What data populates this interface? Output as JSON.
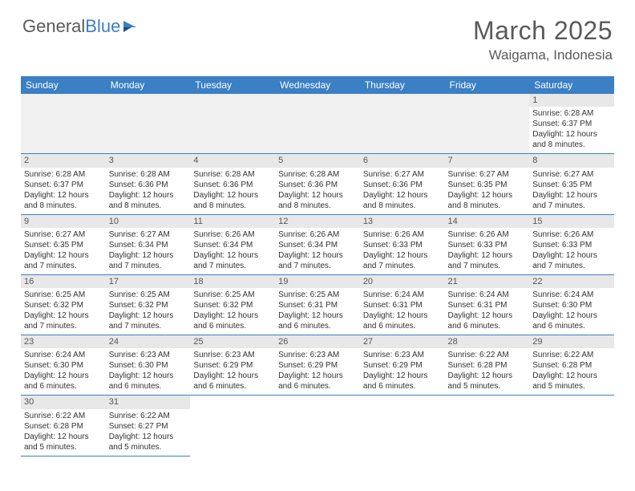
{
  "logo": {
    "text1": "General",
    "text2": "Blue"
  },
  "title": "March 2025",
  "location": "Waigama, Indonesia",
  "colors": {
    "header_bg": "#3b7fc4",
    "header_text": "#ffffff",
    "daynum_bg": "#e8e8e8",
    "border": "#3b7fc4",
    "text": "#333333",
    "title_color": "#5a5a5a"
  },
  "weekdays": [
    "Sunday",
    "Monday",
    "Tuesday",
    "Wednesday",
    "Thursday",
    "Friday",
    "Saturday"
  ],
  "weeks": [
    [
      null,
      null,
      null,
      null,
      null,
      null,
      {
        "n": "1",
        "sr": "Sunrise: 6:28 AM",
        "ss": "Sunset: 6:37 PM",
        "dl": "Daylight: 12 hours and 8 minutes."
      }
    ],
    [
      {
        "n": "2",
        "sr": "Sunrise: 6:28 AM",
        "ss": "Sunset: 6:37 PM",
        "dl": "Daylight: 12 hours and 8 minutes."
      },
      {
        "n": "3",
        "sr": "Sunrise: 6:28 AM",
        "ss": "Sunset: 6:36 PM",
        "dl": "Daylight: 12 hours and 8 minutes."
      },
      {
        "n": "4",
        "sr": "Sunrise: 6:28 AM",
        "ss": "Sunset: 6:36 PM",
        "dl": "Daylight: 12 hours and 8 minutes."
      },
      {
        "n": "5",
        "sr": "Sunrise: 6:28 AM",
        "ss": "Sunset: 6:36 PM",
        "dl": "Daylight: 12 hours and 8 minutes."
      },
      {
        "n": "6",
        "sr": "Sunrise: 6:27 AM",
        "ss": "Sunset: 6:36 PM",
        "dl": "Daylight: 12 hours and 8 minutes."
      },
      {
        "n": "7",
        "sr": "Sunrise: 6:27 AM",
        "ss": "Sunset: 6:35 PM",
        "dl": "Daylight: 12 hours and 8 minutes."
      },
      {
        "n": "8",
        "sr": "Sunrise: 6:27 AM",
        "ss": "Sunset: 6:35 PM",
        "dl": "Daylight: 12 hours and 7 minutes."
      }
    ],
    [
      {
        "n": "9",
        "sr": "Sunrise: 6:27 AM",
        "ss": "Sunset: 6:35 PM",
        "dl": "Daylight: 12 hours and 7 minutes."
      },
      {
        "n": "10",
        "sr": "Sunrise: 6:27 AM",
        "ss": "Sunset: 6:34 PM",
        "dl": "Daylight: 12 hours and 7 minutes."
      },
      {
        "n": "11",
        "sr": "Sunrise: 6:26 AM",
        "ss": "Sunset: 6:34 PM",
        "dl": "Daylight: 12 hours and 7 minutes."
      },
      {
        "n": "12",
        "sr": "Sunrise: 6:26 AM",
        "ss": "Sunset: 6:34 PM",
        "dl": "Daylight: 12 hours and 7 minutes."
      },
      {
        "n": "13",
        "sr": "Sunrise: 6:26 AM",
        "ss": "Sunset: 6:33 PM",
        "dl": "Daylight: 12 hours and 7 minutes."
      },
      {
        "n": "14",
        "sr": "Sunrise: 6:26 AM",
        "ss": "Sunset: 6:33 PM",
        "dl": "Daylight: 12 hours and 7 minutes."
      },
      {
        "n": "15",
        "sr": "Sunrise: 6:26 AM",
        "ss": "Sunset: 6:33 PM",
        "dl": "Daylight: 12 hours and 7 minutes."
      }
    ],
    [
      {
        "n": "16",
        "sr": "Sunrise: 6:25 AM",
        "ss": "Sunset: 6:32 PM",
        "dl": "Daylight: 12 hours and 7 minutes."
      },
      {
        "n": "17",
        "sr": "Sunrise: 6:25 AM",
        "ss": "Sunset: 6:32 PM",
        "dl": "Daylight: 12 hours and 7 minutes."
      },
      {
        "n": "18",
        "sr": "Sunrise: 6:25 AM",
        "ss": "Sunset: 6:32 PM",
        "dl": "Daylight: 12 hours and 6 minutes."
      },
      {
        "n": "19",
        "sr": "Sunrise: 6:25 AM",
        "ss": "Sunset: 6:31 PM",
        "dl": "Daylight: 12 hours and 6 minutes."
      },
      {
        "n": "20",
        "sr": "Sunrise: 6:24 AM",
        "ss": "Sunset: 6:31 PM",
        "dl": "Daylight: 12 hours and 6 minutes."
      },
      {
        "n": "21",
        "sr": "Sunrise: 6:24 AM",
        "ss": "Sunset: 6:31 PM",
        "dl": "Daylight: 12 hours and 6 minutes."
      },
      {
        "n": "22",
        "sr": "Sunrise: 6:24 AM",
        "ss": "Sunset: 6:30 PM",
        "dl": "Daylight: 12 hours and 6 minutes."
      }
    ],
    [
      {
        "n": "23",
        "sr": "Sunrise: 6:24 AM",
        "ss": "Sunset: 6:30 PM",
        "dl": "Daylight: 12 hours and 6 minutes."
      },
      {
        "n": "24",
        "sr": "Sunrise: 6:23 AM",
        "ss": "Sunset: 6:30 PM",
        "dl": "Daylight: 12 hours and 6 minutes."
      },
      {
        "n": "25",
        "sr": "Sunrise: 6:23 AM",
        "ss": "Sunset: 6:29 PM",
        "dl": "Daylight: 12 hours and 6 minutes."
      },
      {
        "n": "26",
        "sr": "Sunrise: 6:23 AM",
        "ss": "Sunset: 6:29 PM",
        "dl": "Daylight: 12 hours and 6 minutes."
      },
      {
        "n": "27",
        "sr": "Sunrise: 6:23 AM",
        "ss": "Sunset: 6:29 PM",
        "dl": "Daylight: 12 hours and 6 minutes."
      },
      {
        "n": "28",
        "sr": "Sunrise: 6:22 AM",
        "ss": "Sunset: 6:28 PM",
        "dl": "Daylight: 12 hours and 5 minutes."
      },
      {
        "n": "29",
        "sr": "Sunrise: 6:22 AM",
        "ss": "Sunset: 6:28 PM",
        "dl": "Daylight: 12 hours and 5 minutes."
      }
    ],
    [
      {
        "n": "30",
        "sr": "Sunrise: 6:22 AM",
        "ss": "Sunset: 6:28 PM",
        "dl": "Daylight: 12 hours and 5 minutes."
      },
      {
        "n": "31",
        "sr": "Sunrise: 6:22 AM",
        "ss": "Sunset: 6:27 PM",
        "dl": "Daylight: 12 hours and 5 minutes."
      },
      null,
      null,
      null,
      null,
      null
    ]
  ]
}
